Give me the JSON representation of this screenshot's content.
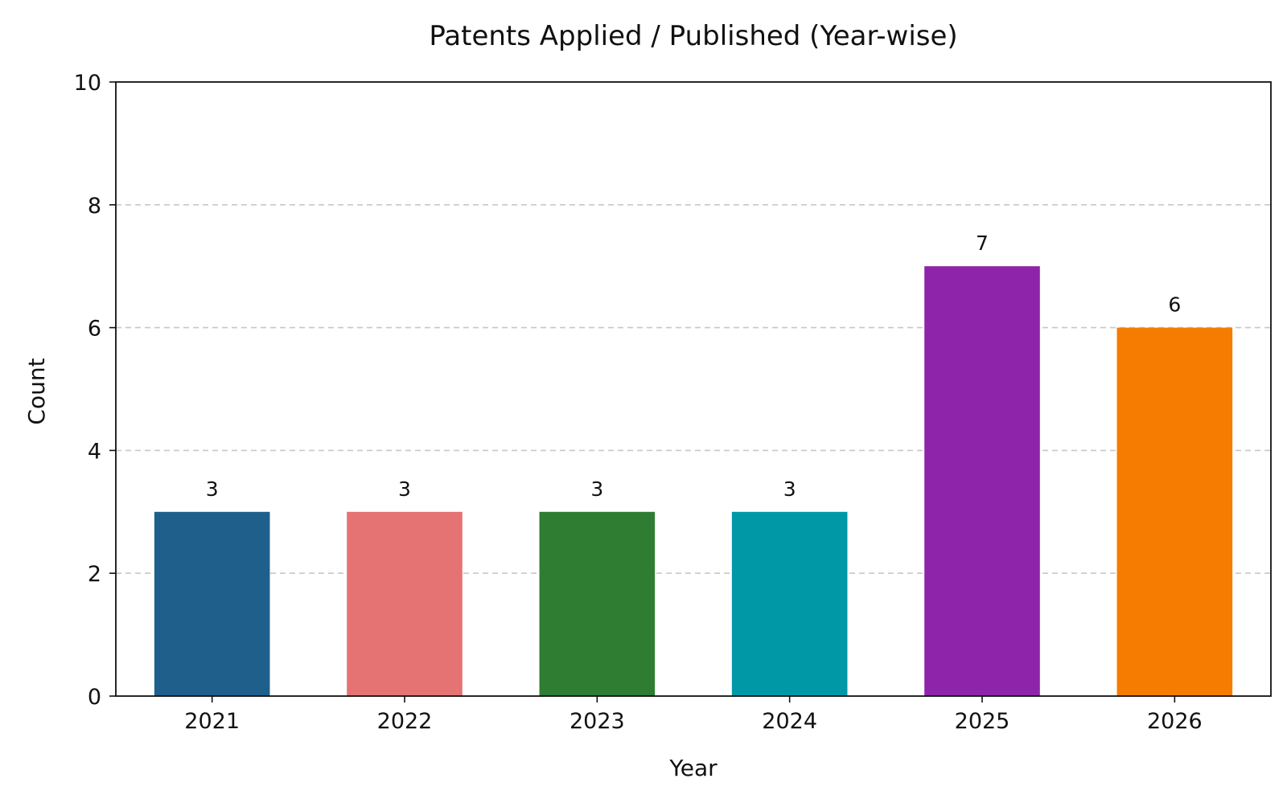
{
  "chart_data": {
    "type": "bar",
    "title": "Patents Applied / Published (Year-wise)",
    "xlabel": "Year",
    "ylabel": "Count",
    "categories": [
      "2021",
      "2022",
      "2023",
      "2024",
      "2025",
      "2026"
    ],
    "values": [
      3,
      3,
      3,
      3,
      7,
      6
    ],
    "data_labels": [
      "3",
      "3",
      "3",
      "3",
      "7",
      "6"
    ],
    "colors": [
      "#1f5f8b",
      "#e57373",
      "#2e7d32",
      "#0097a7",
      "#8e24aa",
      "#f57c00"
    ],
    "ylim": [
      0,
      10
    ],
    "yticks": [
      0,
      2,
      4,
      6,
      8,
      10
    ],
    "grid": "horizontal dashed",
    "legend": "none"
  }
}
